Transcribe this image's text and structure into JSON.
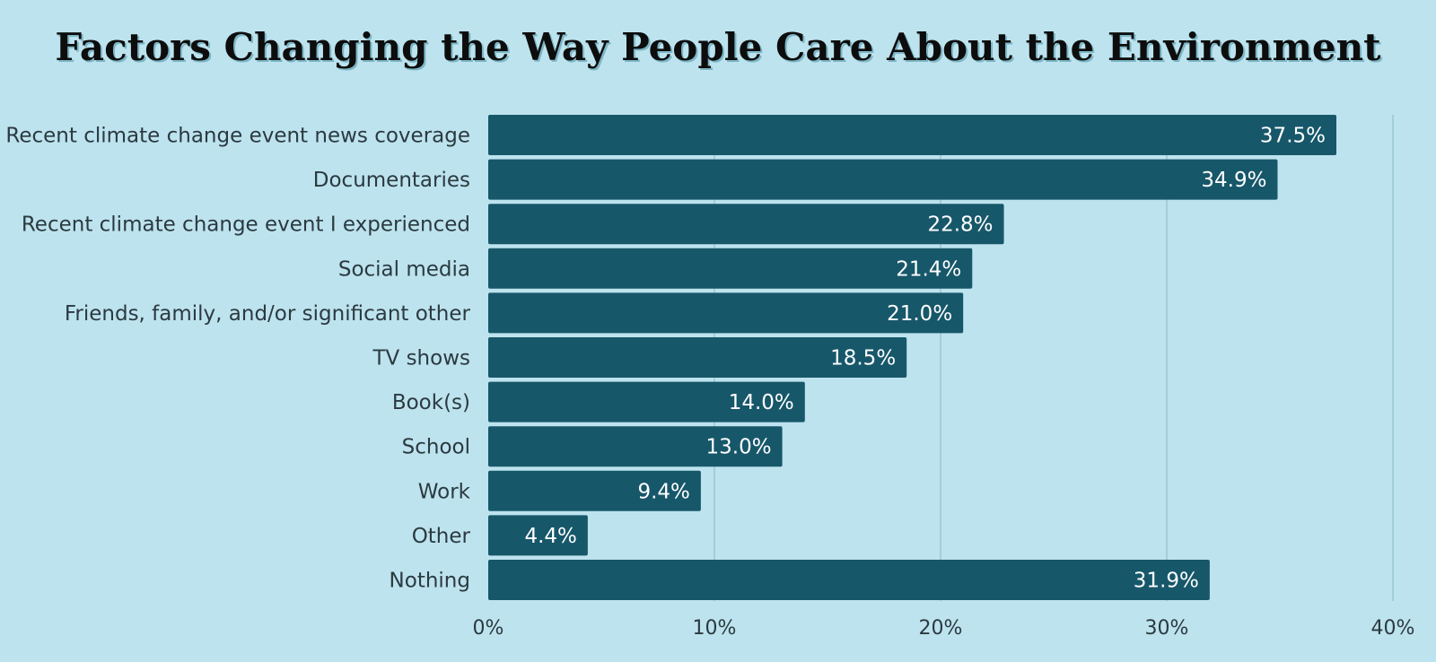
{
  "chart_data": {
    "type": "bar",
    "orientation": "horizontal",
    "title": "Factors Changing the Way People Care About the Environment",
    "categories": [
      "Recent climate change event news coverage",
      "Documentaries",
      "Recent climate change event I experienced",
      "Social media",
      "Friends, family, and/or significant other",
      "TV shows",
      "Book(s)",
      "School",
      "Work",
      "Other",
      "Nothing"
    ],
    "values": [
      37.5,
      34.9,
      22.8,
      21.4,
      21.0,
      18.5,
      14.0,
      13.0,
      9.4,
      4.4,
      31.9
    ],
    "value_labels": [
      "37.5%",
      "34.9%",
      "22.8%",
      "21.4%",
      "21.0%",
      "18.5%",
      "14.0%",
      "13.0%",
      "9.4%",
      "4.4%",
      "31.9%"
    ],
    "xlim": [
      0,
      40
    ],
    "xticks": [
      0,
      10,
      20,
      30,
      40
    ],
    "xtick_labels": [
      "0%",
      "10%",
      "20%",
      "30%",
      "40%"
    ],
    "grid": true,
    "legend": "none",
    "colors": {
      "bar": "#17576a",
      "background": "#bde3ee",
      "grid": "#94c2cd"
    }
  }
}
